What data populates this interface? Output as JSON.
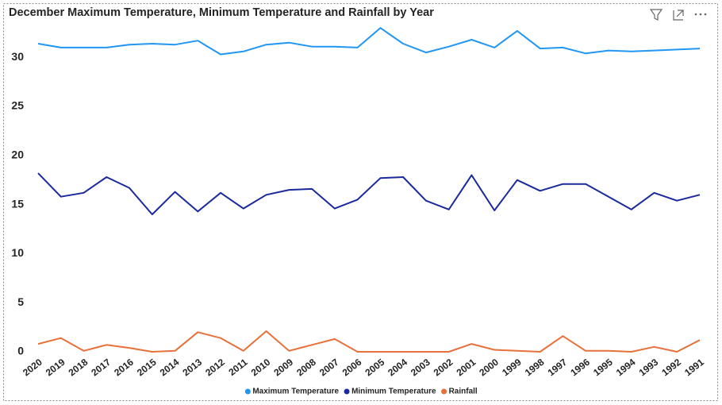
{
  "chart_data": {
    "type": "line",
    "title": "December Maximum Temperature, Minimum Temperature and Rainfall by Year",
    "categories": [
      "2020",
      "2019",
      "2018",
      "2017",
      "2016",
      "2015",
      "2014",
      "2013",
      "2012",
      "2011",
      "2010",
      "2009",
      "2008",
      "2007",
      "2006",
      "2005",
      "2004",
      "2003",
      "2002",
      "2001",
      "2000",
      "1999",
      "1998",
      "1997",
      "1996",
      "1995",
      "1994",
      "1993",
      "1992",
      "1991"
    ],
    "series": [
      {
        "name": "Maximum Temperature",
        "color": "#2196f3",
        "values": [
          31.4,
          31.0,
          31.0,
          31.0,
          31.3,
          31.4,
          31.3,
          31.7,
          30.3,
          30.6,
          31.3,
          31.5,
          31.1,
          31.1,
          31.0,
          33.0,
          31.4,
          30.5,
          31.1,
          31.8,
          31.0,
          32.7,
          30.9,
          31.0,
          30.4,
          30.7,
          30.6,
          30.7,
          30.8,
          30.9
        ]
      },
      {
        "name": "Minimum Temperature",
        "color": "#1a2a9c",
        "values": [
          18.2,
          15.8,
          16.2,
          17.8,
          16.7,
          14.0,
          16.3,
          14.3,
          16.2,
          14.6,
          16.0,
          16.5,
          16.6,
          14.6,
          15.5,
          17.7,
          17.8,
          15.4,
          14.5,
          18.0,
          14.4,
          17.5,
          16.4,
          17.1,
          17.1,
          15.8,
          14.5,
          16.2,
          15.4,
          16.0
        ]
      },
      {
        "name": "Rainfall",
        "color": "#e8703a",
        "values": [
          0.8,
          1.4,
          0.1,
          0.7,
          0.4,
          0.0,
          0.1,
          2.0,
          1.4,
          0.1,
          2.1,
          0.1,
          0.7,
          1.3,
          0.0,
          0.0,
          0.0,
          0.0,
          0.0,
          0.8,
          0.2,
          0.1,
          0.0,
          1.6,
          0.1,
          0.1,
          0.0,
          0.5,
          0.0,
          1.2
        ]
      }
    ],
    "ylim": [
      0,
      33.5
    ],
    "yticks": [
      0,
      5,
      10,
      15,
      20,
      25,
      30
    ],
    "grid": false,
    "legend": "bottom"
  }
}
